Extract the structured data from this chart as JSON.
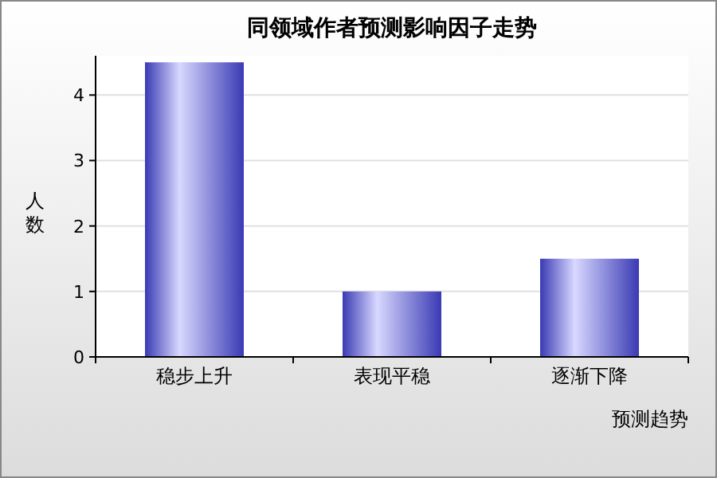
{
  "chart_data": {
    "type": "bar",
    "title": "同领域作者预测影响因子走势",
    "xlabel": "预测趋势",
    "ylabel": "人数",
    "categories": [
      "稳步上升",
      "表现平稳",
      "逐渐下降"
    ],
    "series": [
      {
        "color": "#3a3ab4",
        "values": [
          4.5,
          1,
          1.5
        ]
      }
    ],
    "ylim": [
      0,
      4.6
    ],
    "yticks": [
      0,
      1,
      2,
      3,
      4
    ],
    "grid": "y"
  }
}
